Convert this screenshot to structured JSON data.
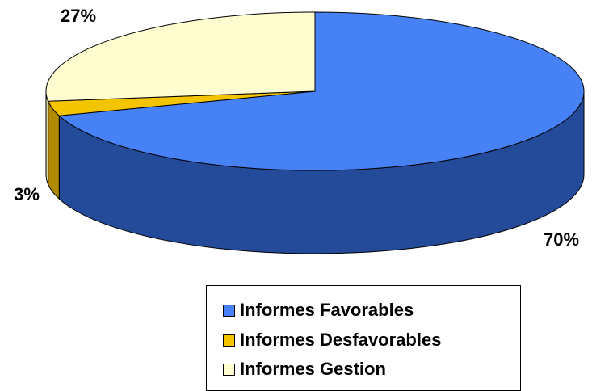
{
  "chart_data": {
    "type": "pie",
    "style": "3d",
    "labels": [
      "Informes Favorables",
      "Informes Desfavorables",
      "Informes Gestion"
    ],
    "values": [
      70,
      3,
      27
    ],
    "value_labels": [
      "70%",
      "3%",
      "27%"
    ],
    "colors": [
      "#4682F5",
      "#F5C400",
      "#FFFDD0"
    ],
    "side_colors": [
      "#244A9A",
      "#B08A00",
      "#D8D6A8"
    ],
    "legend_position": "bottom-right"
  },
  "legend": {
    "items": [
      {
        "label": "Informes Favorables"
      },
      {
        "label": "Informes Desfavorables"
      },
      {
        "label": "Informes Gestion"
      }
    ]
  }
}
